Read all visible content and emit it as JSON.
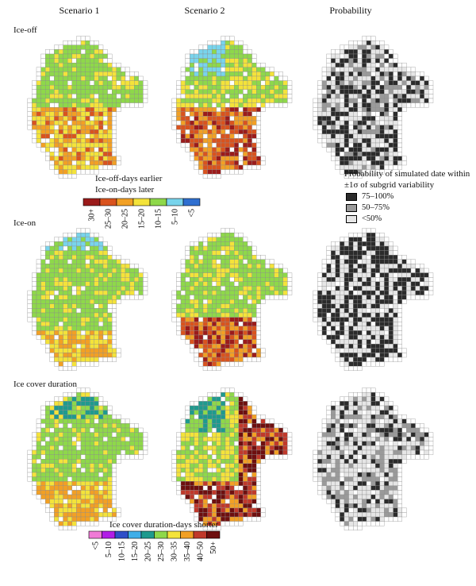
{
  "columns": [
    "Scenario 1",
    "Scenario 2",
    "Probability"
  ],
  "rows": [
    "Ice-off",
    "Ice-on",
    "Ice cover duration"
  ],
  "change_legend": {
    "title_line1": "Ice-off-days earlier",
    "title_line2": "Ice-on-days later",
    "classes": [
      {
        "label": "30+",
        "color": "#9b1b1b"
      },
      {
        "label": "25–30",
        "color": "#d9531e"
      },
      {
        "label": "20–25",
        "color": "#f2a024"
      },
      {
        "label": "15–20",
        "color": "#f4e33a"
      },
      {
        "label": "10–15",
        "color": "#8ed84a"
      },
      {
        "label": "5–10",
        "color": "#78d4ec"
      },
      {
        "label": "<5",
        "color": "#2f6fd0"
      }
    ]
  },
  "duration_legend": {
    "title": "Ice cover duration-days shorter",
    "classes": [
      {
        "label": "<5",
        "color": "#f07ad6"
      },
      {
        "label": "5–10",
        "color": "#b21de6"
      },
      {
        "label": "10–15",
        "color": "#2f4fc8"
      },
      {
        "label": "15–20",
        "color": "#3faee8"
      },
      {
        "label": "20–25",
        "color": "#1f9a8e"
      },
      {
        "label": "25–30",
        "color": "#8ed84a"
      },
      {
        "label": "30–35",
        "color": "#f4e33a"
      },
      {
        "label": "35–40",
        "color": "#f2a024"
      },
      {
        "label": "40–50",
        "color": "#c0392b"
      },
      {
        "label": "50+",
        "color": "#6e0f0f"
      }
    ]
  },
  "probability_legend": {
    "title_line1": "Probability of simulated date within",
    "title_line2": "±1σ of subgrid variability",
    "classes": [
      {
        "label": "75–100%",
        "color": "#2b2b2b"
      },
      {
        "label": "50–75%",
        "color": "#9a9a9a"
      },
      {
        "label": "<50%",
        "color": "#e6e6e6"
      }
    ]
  }
}
